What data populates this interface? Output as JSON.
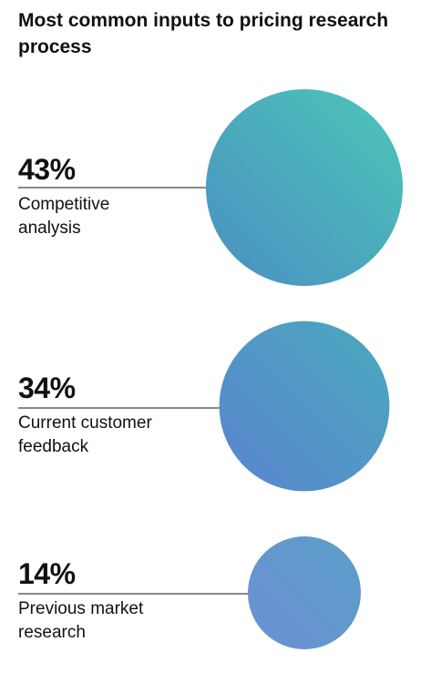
{
  "chart_data": {
    "type": "bubble",
    "title": "Most common inputs to pricing research process",
    "items": [
      {
        "value": 43,
        "display": "43%",
        "label": "Competitive\nanalysis",
        "gradient": [
          "#4a8fc2",
          "#4dc6b8"
        ]
      },
      {
        "value": 34,
        "display": "34%",
        "label": "Current customer\nfeedback",
        "gradient": [
          "#5a84d0",
          "#4aa9bd"
        ]
      },
      {
        "value": 14,
        "display": "14%",
        "label": "Previous market\nresearch",
        "gradient": [
          "#6b90d4",
          "#5c9ec8"
        ]
      }
    ]
  }
}
